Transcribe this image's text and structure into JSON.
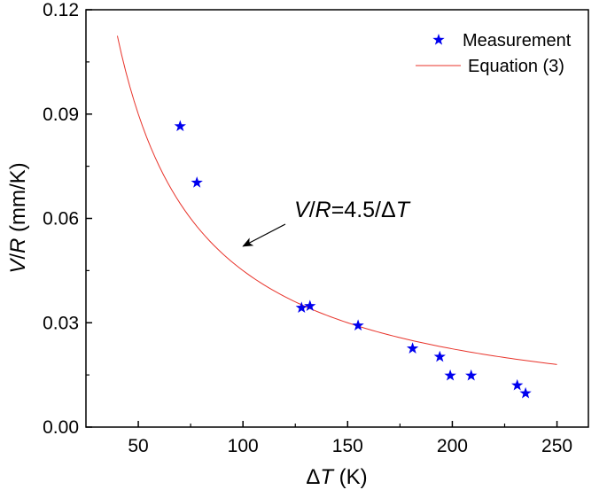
{
  "chart_data": {
    "type": "scatter",
    "title": "",
    "xlabel": {
      "symbol": "Δ",
      "var": "T",
      "unit": " (K)"
    },
    "ylabel": {
      "v": "V",
      "slash": "/",
      "r": "R",
      "unit": " (mm/K)"
    },
    "xlim": [
      25,
      265
    ],
    "ylim": [
      0,
      0.12
    ],
    "x_ticks": [
      50,
      100,
      150,
      200,
      250
    ],
    "x_tick_labels": [
      "50",
      "100",
      "150",
      "200",
      "250"
    ],
    "y_ticks": [
      0,
      0.03,
      0.06,
      0.09,
      0.12
    ],
    "y_tick_labels": [
      "0.00",
      "0.03",
      "0.06",
      "0.09",
      "0.12"
    ],
    "grid": false,
    "legend_position": "top-right",
    "series": [
      {
        "name": "Measurement",
        "kind": "scatter",
        "marker": "star",
        "color": "#0000ee",
        "x": [
          70,
          78,
          128,
          132,
          155,
          181,
          194,
          199,
          209,
          231,
          235
        ],
        "y": [
          0.0865,
          0.0703,
          0.0343,
          0.0348,
          0.0292,
          0.0226,
          0.0202,
          0.0148,
          0.0148,
          0.012,
          0.0097
        ]
      },
      {
        "name": "Equation (3)",
        "kind": "line",
        "color": "#e8332a",
        "function": "4.5/x",
        "x_range": [
          40,
          250
        ]
      }
    ],
    "annotation": {
      "v": "V",
      "slash": "/",
      "r": "R",
      "rest": "=4.5/Δ",
      "t": "T",
      "arrow_target": {
        "x": 100,
        "y": 0.052
      }
    }
  }
}
